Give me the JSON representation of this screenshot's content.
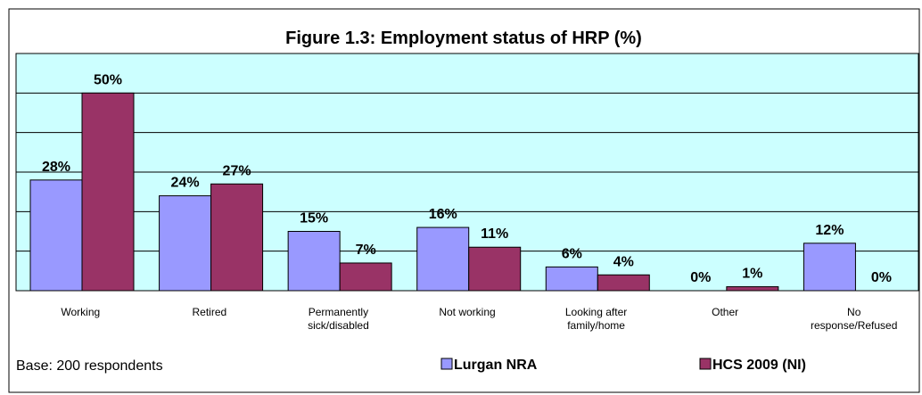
{
  "chart_data": {
    "type": "bar",
    "title": "Figure 1.3: Employment status of HRP (%)",
    "categories": [
      "Working",
      "Retired",
      "Permanently\nsick/disabled",
      "Not working",
      "Looking after\nfamily/home",
      "Other",
      "No\nresponse/Refused"
    ],
    "series": [
      {
        "name": "Lurgan NRA",
        "color": "#9999ff",
        "values": [
          28,
          24,
          15,
          16,
          6,
          0,
          12
        ],
        "value_labels": [
          "28%",
          "24%",
          "15%",
          "16%",
          "6%",
          "0%",
          "12%"
        ]
      },
      {
        "name": "HCS 2009 (NI)",
        "color": "#993366",
        "values": [
          50,
          27,
          7,
          11,
          4,
          1,
          0
        ],
        "value_labels": [
          "50%",
          "27%",
          "7%",
          "11%",
          "4%",
          "1%",
          "0%"
        ]
      }
    ],
    "ylim": [
      0,
      60
    ],
    "yticks": [
      0,
      10,
      20,
      30,
      40,
      50,
      60
    ],
    "grid": true,
    "legend": "bottom",
    "note": "Base: 200 respondents"
  }
}
